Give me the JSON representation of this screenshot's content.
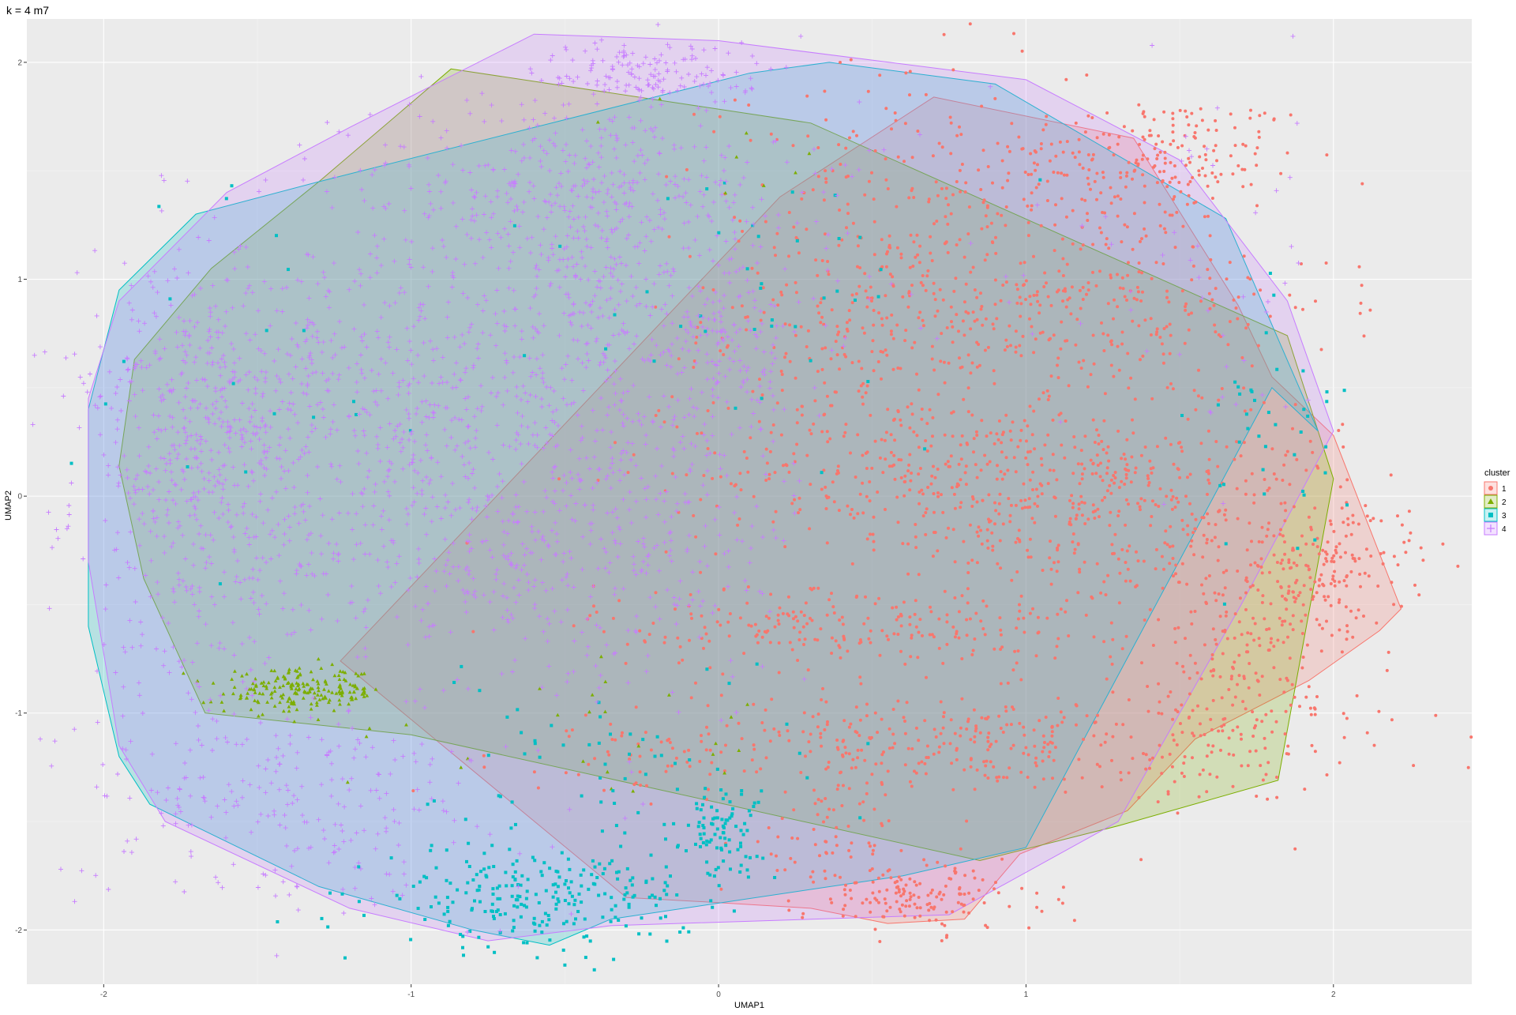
{
  "chart_data": {
    "type": "scatter",
    "title": "k = 4 m7",
    "xlabel": "UMAP1",
    "ylabel": "UMAP2",
    "xlim": [
      -2.25,
      2.45
    ],
    "ylim": [
      -2.25,
      2.2
    ],
    "x_ticks": [
      -2,
      -1,
      0,
      1,
      2
    ],
    "y_ticks": [
      -2,
      -1,
      0,
      1,
      2
    ],
    "grid": true,
    "legend": {
      "title": "cluster",
      "placement": "right",
      "entries": [
        {
          "label": "1",
          "color": "#F8766D",
          "shape": "circle"
        },
        {
          "label": "2",
          "color": "#7CAE00",
          "shape": "triangle"
        },
        {
          "label": "3",
          "color": "#00BFC4",
          "shape": "square"
        },
        {
          "label": "4",
          "color": "#C77CFF",
          "shape": "plus"
        }
      ]
    },
    "series": [
      {
        "name": "1",
        "color": "#F8766D",
        "hull": [
          [
            0.7,
            1.84
          ],
          [
            1.35,
            1.65
          ],
          [
            1.69,
            0.88
          ],
          [
            1.8,
            0.55
          ],
          [
            2.0,
            0.28
          ],
          [
            2.22,
            -0.52
          ],
          [
            2.15,
            -0.62
          ],
          [
            1.92,
            -0.85
          ],
          [
            1.55,
            -1.12
          ],
          [
            1.33,
            -1.45
          ],
          [
            0.98,
            -1.65
          ],
          [
            0.8,
            -1.95
          ],
          [
            0.55,
            -1.97
          ],
          [
            0.3,
            -1.9
          ],
          [
            -0.05,
            -1.87
          ],
          [
            -0.3,
            -1.85
          ],
          [
            -1.23,
            -0.76
          ],
          [
            0.2,
            1.38
          ]
        ],
        "clusters": [
          {
            "cx": 1.4,
            "cy": 1.55,
            "sx": 0.25,
            "sy": 0.15,
            "n": 220
          },
          {
            "cx": 0.55,
            "cy": 0.85,
            "sx": 0.3,
            "sy": 0.55,
            "n": 500
          },
          {
            "cx": 1.2,
            "cy": 0.9,
            "sx": 0.4,
            "sy": 0.25,
            "n": 320
          },
          {
            "cx": 0.95,
            "cy": 0.1,
            "sx": 0.55,
            "sy": 0.15,
            "n": 380
          },
          {
            "cx": 1.35,
            "cy": -0.2,
            "sx": 0.35,
            "sy": 0.25,
            "n": 260
          },
          {
            "cx": 0.4,
            "cy": -0.6,
            "sx": 0.4,
            "sy": 0.1,
            "n": 220
          },
          {
            "cx": 0.75,
            "cy": -1.15,
            "sx": 0.65,
            "sy": 0.12,
            "n": 400
          },
          {
            "cx": 0.65,
            "cy": -1.85,
            "sx": 0.2,
            "sy": 0.08,
            "n": 150
          },
          {
            "cx": 1.95,
            "cy": -0.35,
            "sx": 0.15,
            "sy": 0.15,
            "n": 180
          },
          {
            "cx": 1.7,
            "cy": -0.85,
            "sx": 0.2,
            "sy": 0.25,
            "n": 180
          },
          {
            "cx": 0.35,
            "cy": -1.6,
            "sx": 0.15,
            "sy": 0.1,
            "n": 60
          }
        ]
      },
      {
        "name": "2",
        "color": "#7CAE00",
        "hull": [
          [
            -0.87,
            1.97
          ],
          [
            0.3,
            1.72
          ],
          [
            1.85,
            0.74
          ],
          [
            2.0,
            0.08
          ],
          [
            1.82,
            -1.31
          ],
          [
            1.3,
            -1.52
          ],
          [
            0.85,
            -1.68
          ],
          [
            -1.0,
            -1.1
          ],
          [
            -1.67,
            -1.0
          ],
          [
            -1.87,
            -0.38
          ],
          [
            -1.95,
            0.14
          ],
          [
            -1.9,
            0.63
          ],
          [
            -1.65,
            1.05
          ],
          [
            -1.3,
            1.45
          ]
        ],
        "clusters": [
          {
            "cx": -1.35,
            "cy": -0.9,
            "sx": 0.13,
            "sy": 0.05,
            "n": 200
          },
          {
            "cx": -0.3,
            "cy": -1.1,
            "sx": 0.5,
            "sy": 0.15,
            "n": 25
          },
          {
            "cx": 0.2,
            "cy": 1.6,
            "sx": 0.2,
            "sy": 0.1,
            "n": 8
          }
        ]
      },
      {
        "name": "3",
        "color": "#00BFC4",
        "hull": [
          [
            0.36,
            2.0
          ],
          [
            0.9,
            1.9
          ],
          [
            1.65,
            1.28
          ],
          [
            1.95,
            0.3
          ],
          [
            1.8,
            0.5
          ],
          [
            1.0,
            -1.62
          ],
          [
            0.6,
            -1.75
          ],
          [
            -0.35,
            -1.95
          ],
          [
            -0.55,
            -2.07
          ],
          [
            -0.8,
            -2.0
          ],
          [
            -1.3,
            -1.8
          ],
          [
            -1.85,
            -1.42
          ],
          [
            -1.95,
            -1.2
          ],
          [
            -2.05,
            -0.6
          ],
          [
            -2.05,
            0.4
          ],
          [
            -1.95,
            0.95
          ],
          [
            -1.7,
            1.3
          ],
          [
            -1.3,
            1.45
          ],
          [
            0.1,
            1.95
          ]
        ],
        "clusters": [
          {
            "cx": -0.6,
            "cy": -1.85,
            "sx": 0.25,
            "sy": 0.12,
            "n": 250
          },
          {
            "cx": 0.0,
            "cy": -1.55,
            "sx": 0.07,
            "sy": 0.1,
            "n": 90
          },
          {
            "cx": -0.3,
            "cy": -1.2,
            "sx": 0.3,
            "sy": 0.25,
            "n": 60
          },
          {
            "cx": 0.2,
            "cy": 0.9,
            "sx": 0.4,
            "sy": 0.35,
            "n": 40
          },
          {
            "cx": 1.8,
            "cy": 0.3,
            "sx": 0.12,
            "sy": 0.3,
            "n": 40
          },
          {
            "cx": -1.5,
            "cy": 0.5,
            "sx": 0.3,
            "sy": 0.5,
            "n": 20
          }
        ]
      },
      {
        "name": "4",
        "color": "#C77CFF",
        "hull": [
          [
            -0.6,
            2.13
          ],
          [
            0.0,
            2.1
          ],
          [
            1.0,
            1.92
          ],
          [
            1.5,
            1.55
          ],
          [
            1.85,
            0.9
          ],
          [
            2.0,
            0.3
          ],
          [
            1.7,
            -0.5
          ],
          [
            1.3,
            -1.5
          ],
          [
            0.75,
            -1.93
          ],
          [
            -0.35,
            -1.98
          ],
          [
            -0.75,
            -2.05
          ],
          [
            -1.2,
            -1.9
          ],
          [
            -1.8,
            -1.5
          ],
          [
            -1.95,
            -1.15
          ],
          [
            -2.05,
            -0.3
          ],
          [
            -2.05,
            0.45
          ],
          [
            -1.95,
            0.9
          ],
          [
            -1.6,
            1.4
          ],
          [
            -1.2,
            1.7
          ]
        ],
        "clusters": [
          {
            "cx": -1.7,
            "cy": 0.1,
            "sx": 0.18,
            "sy": 0.5,
            "n": 500
          },
          {
            "cx": -1.2,
            "cy": 0.55,
            "sx": 0.35,
            "sy": 0.3,
            "n": 450
          },
          {
            "cx": -0.9,
            "cy": -0.2,
            "sx": 0.4,
            "sy": 0.4,
            "n": 400
          },
          {
            "cx": -0.5,
            "cy": 1.45,
            "sx": 0.35,
            "sy": 0.2,
            "n": 350
          },
          {
            "cx": -0.4,
            "cy": 0.9,
            "sx": 0.25,
            "sy": 0.35,
            "n": 300
          },
          {
            "cx": -0.3,
            "cy": 0.0,
            "sx": 0.3,
            "sy": 0.45,
            "n": 350
          },
          {
            "cx": -0.2,
            "cy": 1.95,
            "sx": 0.2,
            "sy": 0.08,
            "n": 150
          },
          {
            "cx": 0.05,
            "cy": 0.7,
            "sx": 0.1,
            "sy": 0.2,
            "n": 100
          },
          {
            "cx": -1.4,
            "cy": -1.4,
            "sx": 0.35,
            "sy": 0.25,
            "n": 250
          },
          {
            "cx": 0.3,
            "cy": 1.2,
            "sx": 0.3,
            "sy": 0.3,
            "n": 40
          },
          {
            "cx": 1.5,
            "cy": 1.0,
            "sx": 0.3,
            "sy": 0.4,
            "n": 50
          }
        ]
      }
    ]
  }
}
